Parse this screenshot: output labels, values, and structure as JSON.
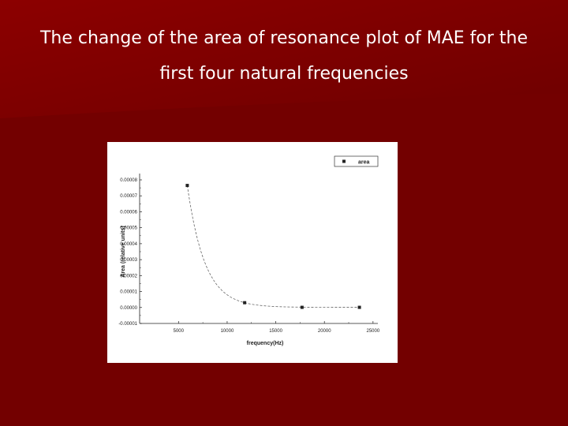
{
  "slide": {
    "title_line1": "The change of the area of resonance plot of MAE for the",
    "title_line2": "first four natural frequencies",
    "colors": {
      "background": "#730000",
      "background_highlight": "#8a0000",
      "text": "#ffffff"
    }
  },
  "chart_data": {
    "type": "scatter",
    "title": "",
    "xlabel": "frequency(Hz)",
    "ylabel": "Area (relative units)",
    "xlim": [
      1000,
      25500
    ],
    "ylim": [
      -1e-05,
      8e-05
    ],
    "x_ticks": [
      5000,
      10000,
      15000,
      20000,
      25000
    ],
    "x_tick_labels": [
      "5000",
      "10000",
      "15000",
      "20000",
      "25000"
    ],
    "y_ticks": [
      -1e-05,
      0.0,
      1e-05,
      2e-05,
      3e-05,
      4e-05,
      5e-05,
      6e-05,
      7e-05,
      8e-05
    ],
    "y_tick_labels": [
      "-0.00001",
      "0.00000",
      "0.00001",
      "0.00002",
      "0.00003",
      "0.00004",
      "0.00005",
      "0.00006",
      "0.00007",
      "0.00008"
    ],
    "series": [
      {
        "name": "area",
        "x": [
          5900,
          11800,
          17700,
          23600
        ],
        "y": [
          7.65e-05,
          3e-06,
          1e-07,
          1e-07
        ]
      }
    ],
    "fit_curve": "dashed",
    "legend": {
      "position": "top-right"
    },
    "grid": false
  }
}
